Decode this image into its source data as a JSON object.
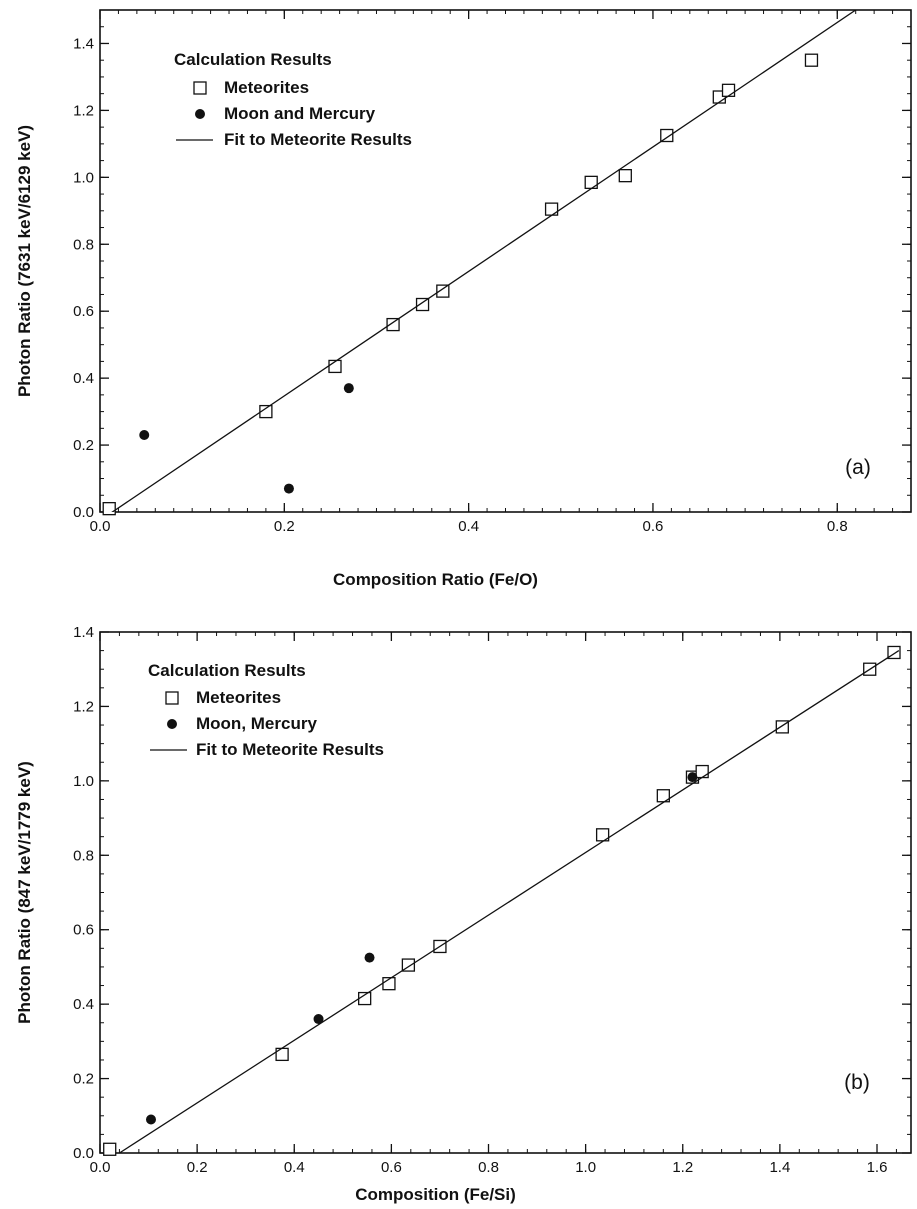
{
  "chart_data": [
    {
      "type": "scatter",
      "panel_label": "(a)",
      "xlabel": "Composition Ratio (Fe/O)",
      "ylabel": "Photon Ratio (7631 keV/6129 keV)",
      "xlim": [
        0,
        0.88
      ],
      "ylim": [
        0,
        1.5
      ],
      "xticks": [
        0.0,
        0.2,
        0.4,
        0.6,
        0.8
      ],
      "yticks": [
        0.0,
        0.2,
        0.4,
        0.6,
        0.8,
        1.0,
        1.2,
        1.4
      ],
      "xtick_labels": [
        "0.0",
        "0.2",
        "0.4",
        "0.6",
        "0.8"
      ],
      "ytick_labels": [
        "0.0",
        "0.2",
        "0.4",
        "0.6",
        "0.8",
        "1.0",
        "1.2",
        "1.4"
      ],
      "legend": {
        "title": "Calculation Results",
        "placement": "top-left",
        "entries": [
          "Meteorites",
          "Moon and Mercury",
          "Fit to Meteorite Results"
        ]
      },
      "series": [
        {
          "name": "Meteorites",
          "marker": "open-square",
          "points": [
            [
              0.01,
              0.01
            ],
            [
              0.18,
              0.3
            ],
            [
              0.255,
              0.435
            ],
            [
              0.318,
              0.56
            ],
            [
              0.35,
              0.62
            ],
            [
              0.372,
              0.66
            ],
            [
              0.49,
              0.905
            ],
            [
              0.533,
              0.985
            ],
            [
              0.57,
              1.005
            ],
            [
              0.615,
              1.125
            ],
            [
              0.672,
              1.24
            ],
            [
              0.682,
              1.26
            ],
            [
              0.772,
              1.35
            ]
          ]
        },
        {
          "name": "Moon and Mercury",
          "marker": "filled-circle",
          "points": [
            [
              0.048,
              0.23
            ],
            [
              0.205,
              0.07
            ],
            [
              0.27,
              0.37
            ]
          ]
        },
        {
          "name": "Fit to Meteorite Results",
          "marker": "line",
          "points": [
            [
              0.0,
              -0.025
            ],
            [
              0.82,
              1.5
            ]
          ]
        }
      ]
    },
    {
      "type": "scatter",
      "panel_label": "(b)",
      "xlabel": "Composition (Fe/Si)",
      "ylabel": "Photon Ratio (847 keV/1779 keV)",
      "xlim": [
        0,
        1.67
      ],
      "ylim": [
        0,
        1.4
      ],
      "xticks": [
        0.0,
        0.2,
        0.4,
        0.6,
        0.8,
        1.0,
        1.2,
        1.4,
        1.6
      ],
      "yticks": [
        0.0,
        0.2,
        0.4,
        0.6,
        0.8,
        1.0,
        1.2,
        1.4
      ],
      "xtick_labels": [
        "0.0",
        "0.2",
        "0.4",
        "0.6",
        "0.8",
        "1.0",
        "1.2",
        "1.4",
        "1.6"
      ],
      "ytick_labels": [
        "0.0",
        "0.2",
        "0.4",
        "0.6",
        "0.8",
        "1.0",
        "1.2",
        "1.4"
      ],
      "legend": {
        "title": "Calculation Results",
        "placement": "top-left",
        "entries": [
          "Meteorites",
          "Moon, Mercury",
          "Fit to Meteorite Results"
        ]
      },
      "series": [
        {
          "name": "Meteorites",
          "marker": "open-square",
          "points": [
            [
              0.02,
              0.01
            ],
            [
              0.375,
              0.265
            ],
            [
              0.545,
              0.415
            ],
            [
              0.595,
              0.455
            ],
            [
              0.635,
              0.505
            ],
            [
              0.7,
              0.555
            ],
            [
              1.035,
              0.855
            ],
            [
              1.16,
              0.96
            ],
            [
              1.22,
              1.01
            ],
            [
              1.24,
              1.025
            ],
            [
              1.405,
              1.145
            ],
            [
              1.585,
              1.3
            ],
            [
              1.635,
              1.345
            ]
          ]
        },
        {
          "name": "Moon, Mercury",
          "marker": "filled-circle",
          "points": [
            [
              0.105,
              0.09
            ],
            [
              0.45,
              0.36
            ],
            [
              0.555,
              0.525
            ],
            [
              1.22,
              1.01
            ]
          ]
        },
        {
          "name": "Fit to Meteorite Results",
          "marker": "line",
          "points": [
            [
              0.04,
              0.0
            ],
            [
              1.645,
              1.35
            ]
          ]
        }
      ]
    }
  ]
}
